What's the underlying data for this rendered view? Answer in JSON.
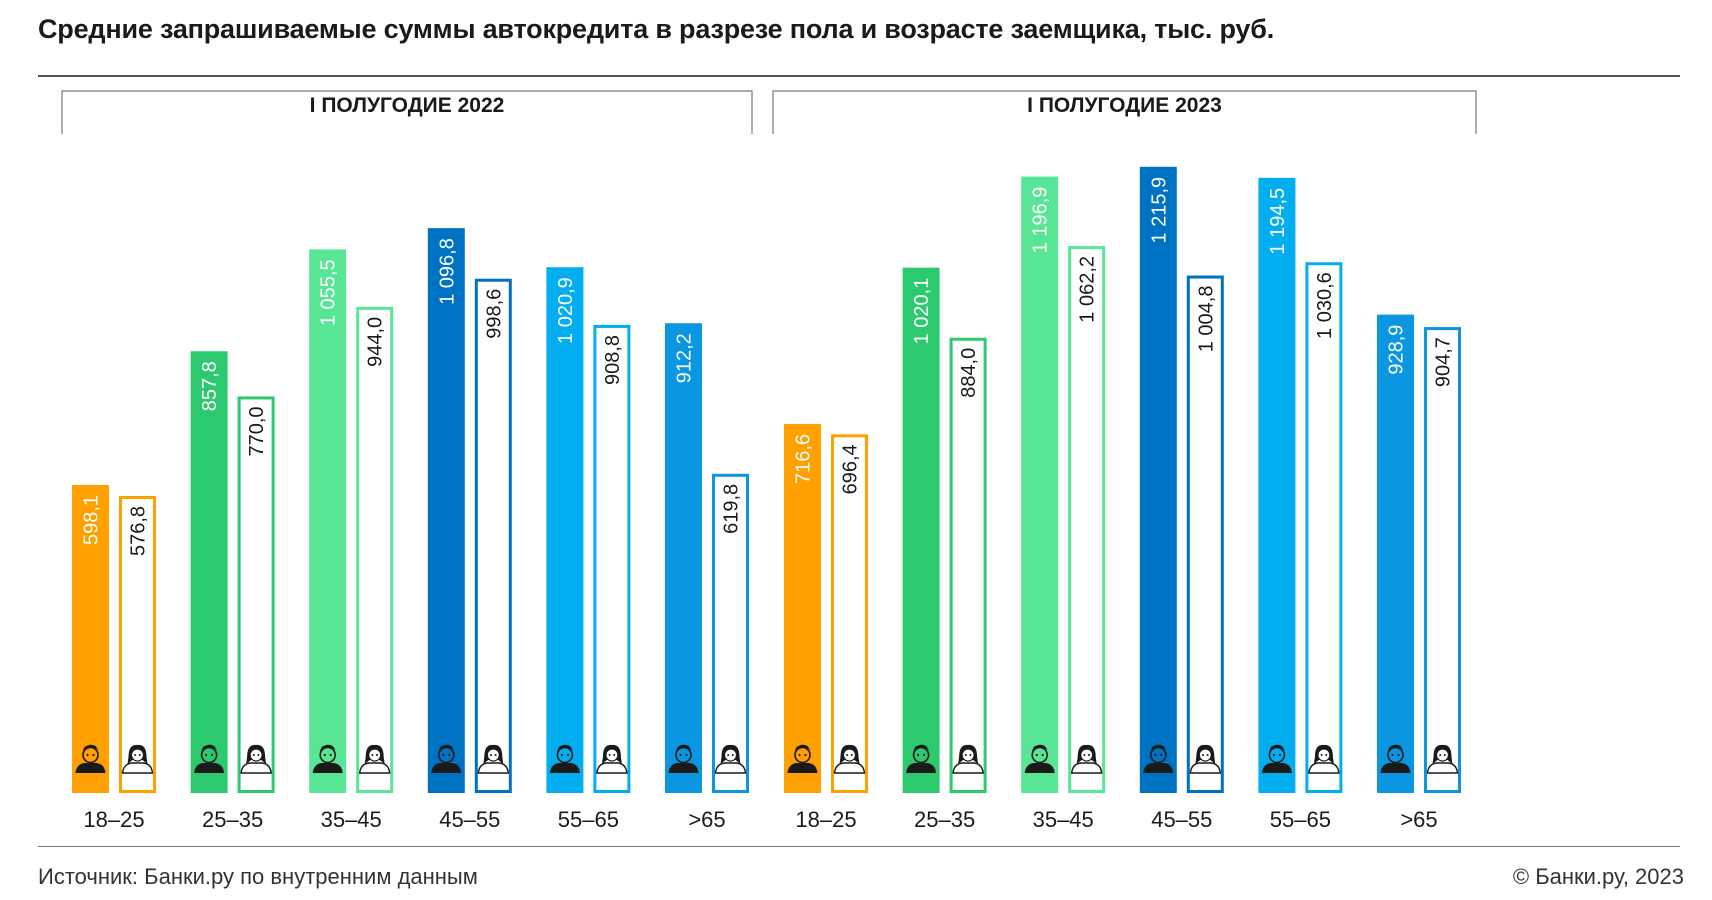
{
  "title": "Средние запрашиваемые суммы автокредита в разрезе пола и возрасте заемщика, тыс. руб.",
  "source": "Источник: Банки.ру по внутренним данным",
  "copyright": "© Банки.ру, 2023",
  "chart_data": {
    "type": "bar",
    "unit": "тыс. руб.",
    "ylim": [
      0,
      1250
    ],
    "groups": [
      "I ПОЛУГОДИЕ 2022",
      "I ПОЛУГОДИЕ 2023"
    ],
    "categories": [
      "18–25",
      "25–35",
      "35–45",
      "45–55",
      "55–65",
      ">65"
    ],
    "category_colors": [
      "#FFA000",
      "#2DC96E",
      "#58E595",
      "#0072C3",
      "#02AEEF",
      "#0A96E0"
    ],
    "series": [
      {
        "icon": "male-avatar-icon",
        "style": "filled",
        "values": [
          [
            598.1,
            857.8,
            1055.5,
            1096.8,
            1020.9,
            912.2
          ],
          [
            716.6,
            1020.1,
            1196.9,
            1215.9,
            1194.5,
            928.9
          ]
        ],
        "labels": [
          [
            "598,1",
            "857,8",
            "1 055,5",
            "1 096,8",
            "1 020,9",
            "912,2"
          ],
          [
            "716,6",
            "1 020,1",
            "1 196,9",
            "1 215,9",
            "1 194,5",
            "928,9"
          ]
        ]
      },
      {
        "icon": "female-avatar-icon",
        "style": "outline",
        "values": [
          [
            576.8,
            770.0,
            944.0,
            998.6,
            908.8,
            619.8
          ],
          [
            696.4,
            884.0,
            1062.2,
            1004.8,
            1030.6,
            904.7
          ]
        ],
        "labels": [
          [
            "576,8",
            "770,0",
            "944,0",
            "998,6",
            "908,8",
            "619,8"
          ],
          [
            "696,4",
            "884,0",
            "1 062,2",
            "1 004,8",
            "1 030,6",
            "904,7"
          ]
        ]
      }
    ]
  }
}
